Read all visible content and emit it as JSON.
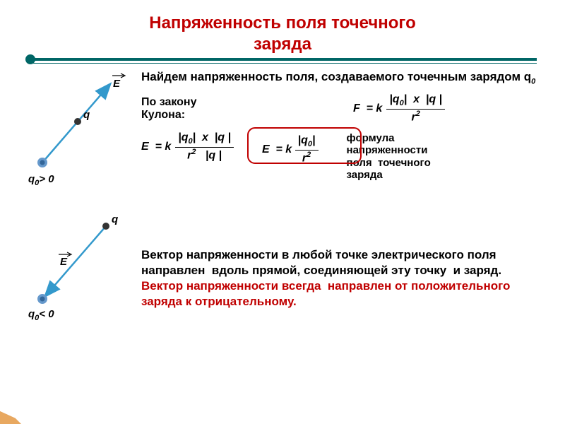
{
  "title_line1": "Напряженность поля точечного",
  "title_line2": "заряда",
  "colors": {
    "title": "#c00000",
    "rule": "#006666",
    "arrow": "#3399cc",
    "dot_outer": "#6699cc",
    "dot_inner": "#336699",
    "box": "#c00000",
    "corner": "#c06000"
  },
  "diagram1": {
    "E_label": "E",
    "q_label": "q",
    "q0_label_html": "q<sub class='sub'>0</sub>> 0"
  },
  "diagram2": {
    "E_label": "E",
    "q_label": "q",
    "q0_label_html": "q<sub class='sub'>0</sub>< 0"
  },
  "intro_html": "Найдем напряженность поля, создаваемого точечным зарядом q<sub class='sub'>0</sub>",
  "coulomb_label_html": "По закону<br>Кулона:",
  "formula_F_html": "F&nbsp; = k <span class='frac'><span class='num'>|q<span class='sub'>0</span>|&nbsp; x&nbsp; |q |</span><span class='den'>r<span class='sup'>2</span></span></span>",
  "formula_E1_html": "E&nbsp; = k <span class='frac'><span class='num'>|q<span class='sub'>0</span>|&nbsp; x&nbsp; |q |</span><span class='den'>r<span class='sup'>2</span>&nbsp;&nbsp; |q |</span></span>",
  "formula_E2_html": "E&nbsp; = k <span class='frac'><span class='num'>|q<span class='sub'>0</span>|</span><span class='den'>r<span class='sup'>2</span></span></span>",
  "side_label_html": "формула<br>напряженности<br>поля&nbsp; точечного<br>заряда",
  "vector_text_html": "Вектор напряженности в любой точке электрического поля направлен&nbsp; вдоль прямой, соединяющей эту точку&nbsp; и заряд. <span class='red'>Вектор напряженности всегда&nbsp; направлен от положительного заряда к отрицательному.</span>",
  "font": {
    "title_size": 24,
    "body_size": 17,
    "formula_size": 16
  }
}
